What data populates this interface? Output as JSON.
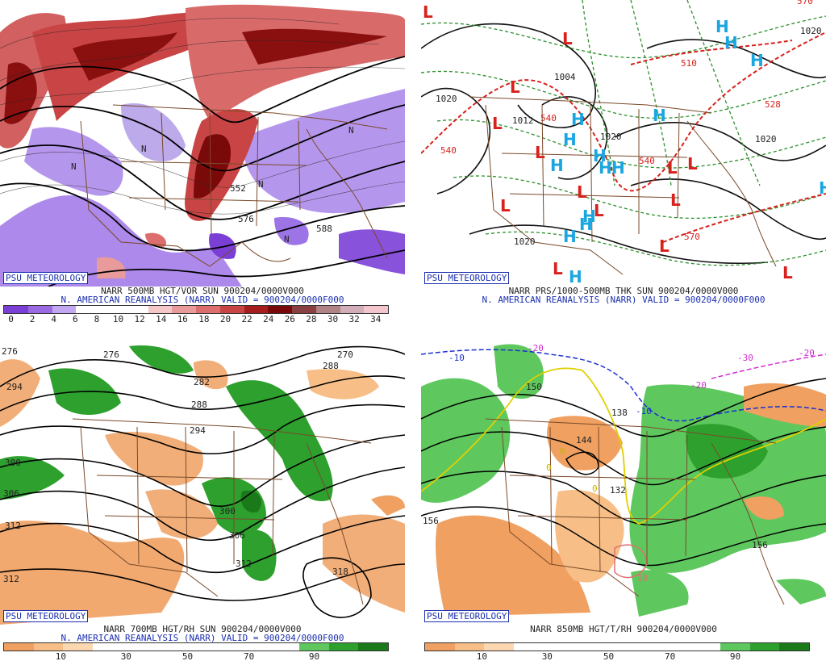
{
  "panels": {
    "tl": {
      "brand": "PSU METEOROLOGY",
      "title": "NARR 500MB HGT/VOR SUN 900204/0000V000",
      "subtitle": "N. AMERICAN REANALYSIS (NARR) VALID = 900204/0000F000",
      "contour_labels": [
        "576",
        "588",
        "552"
      ],
      "markers": [
        "N",
        "N",
        "N",
        "N",
        "N"
      ],
      "colorbar": {
        "colors": [
          "#7b3fd6",
          "#9a6ae2",
          "#c2a8f0",
          "#ffffff",
          "#ffffff",
          "#ffffff",
          "#f4c8c8",
          "#e99a9a",
          "#dd6e6e",
          "#c94545",
          "#a61d1d",
          "#7a0a0a",
          "#8a4040",
          "#b08484",
          "#d2aeb8",
          "#f2c6cc"
        ],
        "ticks": [
          "0",
          "2",
          "4",
          "6",
          "8",
          "10",
          "12",
          "14",
          "16",
          "18",
          "20",
          "22",
          "24",
          "26",
          "28",
          "30",
          "32",
          "34"
        ]
      }
    },
    "tr": {
      "brand": "PSU METEOROLOGY",
      "title": "NARR PRS/1000-500MB THK SUN 900204/0000V000",
      "subtitle": "N. AMERICAN REANALYSIS (NARR) VALID = 900204/0000F000",
      "contour_labels": [
        "1020",
        "1012",
        "1004",
        "1020",
        "1020",
        "1020",
        "540",
        "540",
        "540",
        "570",
        "570",
        "510",
        "528",
        "1020"
      ],
      "high_symbol": "H",
      "low_symbol": "L",
      "colors": {
        "high": "#1aa6e0",
        "low": "#d8211c",
        "thickness": "#d8211c",
        "thickness_low": "#2a8f2a",
        "isobar": "#111111"
      }
    },
    "bl": {
      "brand": "PSU METEOROLOGY",
      "title": "NARR 700MB HGT/RH SUN 900204/0000V000",
      "subtitle": "N. AMERICAN REANALYSIS (NARR) VALID = 900204/0000F000",
      "contour_labels": [
        "276",
        "270",
        "288",
        "282",
        "288",
        "294",
        "294",
        "300",
        "306",
        "300",
        "306",
        "312",
        "318",
        "312",
        "312",
        "276"
      ],
      "colorbar": {
        "colors": [
          "#f0a060",
          "#f7bf87",
          "#fbd7b2",
          "#ffffff",
          "#ffffff",
          "#ffffff",
          "#ffffff",
          "#ffffff",
          "#ffffff",
          "#ffffff",
          "#5ec85e",
          "#2ea02e",
          "#1a7a1a"
        ],
        "ticks": [
          "10",
          "30",
          "50",
          "70",
          "90"
        ]
      }
    },
    "br": {
      "brand": "PSU METEOROLOGY",
      "title": "NARR 850MB HGT/T/RH 900204/0000V000",
      "contour_labels": [
        "-10",
        "-20",
        "-10",
        "-30",
        "-20",
        "-20",
        "144",
        "138",
        "132",
        "150",
        "156",
        "156",
        "0",
        "0",
        "10",
        "0"
      ],
      "colorbar": {
        "colors": [
          "#f0a060",
          "#f7bf87",
          "#fbd7b2",
          "#ffffff",
          "#ffffff",
          "#ffffff",
          "#ffffff",
          "#ffffff",
          "#ffffff",
          "#ffffff",
          "#5ec85e",
          "#2ea02e",
          "#1a7a1a"
        ],
        "ticks": [
          "10",
          "30",
          "50",
          "70",
          "90"
        ]
      }
    }
  }
}
